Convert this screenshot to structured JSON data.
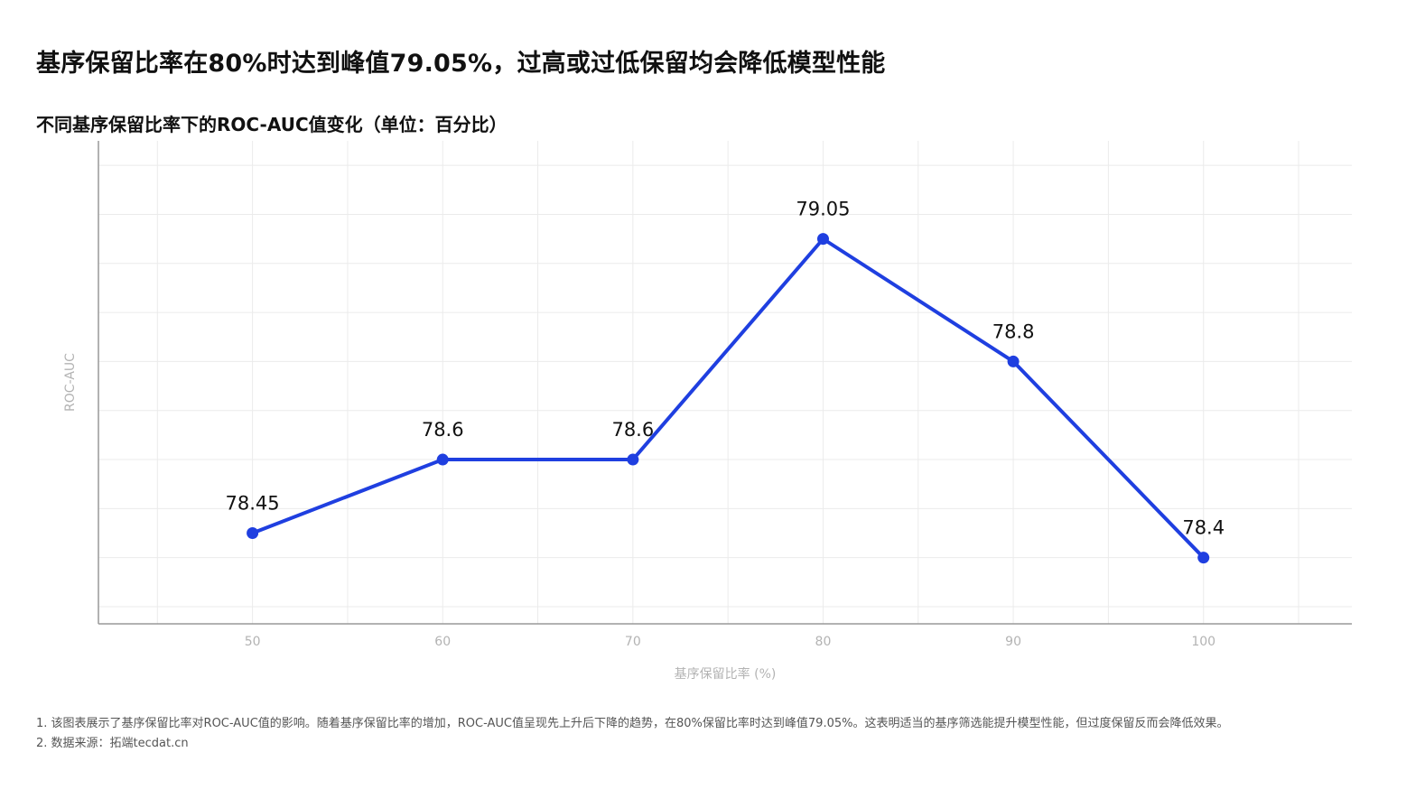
{
  "headline": "基序保留比率在80%时达到峰值79.05%，过高或过低保留均会降低模型性能",
  "chart_data": {
    "type": "line",
    "title": "不同基序保留比率下的ROC-AUC值变化（单位：百分比）",
    "xlabel": "基序保留比率 (%)",
    "ylabel": "ROC-AUC",
    "x": [
      50,
      60,
      70,
      80,
      90,
      100
    ],
    "x_tick_labels": [
      "50",
      "60",
      "70",
      "80",
      "90",
      "100"
    ],
    "series": [
      {
        "values": [
          78.45,
          78.6,
          78.6,
          79.05,
          78.8,
          78.4
        ],
        "data_labels": [
          "78.45",
          "78.6",
          "78.6",
          "79.05",
          "78.8",
          "78.4"
        ],
        "color": "#1f3fe0"
      }
    ],
    "xlim": [
      41.9,
      107.8
    ],
    "ylim": [
      78.265,
      79.25
    ],
    "grid": true,
    "legend": "none"
  },
  "notes": [
    "1. 该图表展示了基序保留比率对ROC-AUC值的影响。随着基序保留比率的增加，ROC-AUC值呈现先上升后下降的趋势，在80%保留比率时达到峰值79.05%。这表明适当的基序筛选能提升模型性能，但过度保留反而会降低效果。",
    "2. 数据来源：拓端tecdat.cn"
  ],
  "colors": {
    "line": "#1f3fe0",
    "grid": "#ebebeb",
    "axis": "#999999",
    "tick_text": "#b3b3b3"
  }
}
